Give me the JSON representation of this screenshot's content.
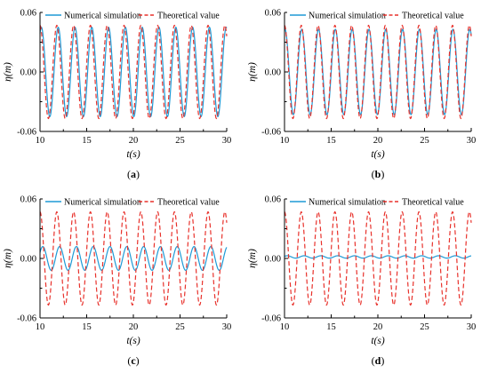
{
  "chart_data": [
    {
      "id": "a",
      "type": "line",
      "caption_letter": "a",
      "xlabel": "t(s)",
      "ylabel": "η(m)",
      "xlim": [
        10,
        30
      ],
      "ylim": [
        -0.06,
        0.06
      ],
      "xticks": [
        "10",
        "15",
        "20",
        "25",
        "30"
      ],
      "yticks": [
        "0.06",
        "0.00",
        "-0.06"
      ],
      "legend_position": "top",
      "series": [
        {
          "name": "Numerical simulation",
          "style": "solid",
          "color": "#1f9ad6",
          "amplitude": 0.045,
          "period": 1.8,
          "phase_shift": 0.15,
          "offset": 0.0
        },
        {
          "name": "Theoretical value",
          "style": "dashed",
          "color": "#e8312b",
          "amplitude": 0.047,
          "period": 1.8,
          "phase_shift": 0.0,
          "offset": 0.0
        }
      ]
    },
    {
      "id": "b",
      "type": "line",
      "caption_letter": "b",
      "xlabel": "t(s)",
      "ylabel": "η(m)",
      "xlim": [
        10,
        30
      ],
      "ylim": [
        -0.06,
        0.06
      ],
      "xticks": [
        "10",
        "15",
        "20",
        "25",
        "30"
      ],
      "yticks": [
        "0.06",
        "0.00",
        "-0.06"
      ],
      "legend_position": "top",
      "series": [
        {
          "name": "Numerical simulation",
          "style": "solid",
          "color": "#1f9ad6",
          "amplitude": 0.043,
          "period": 1.8,
          "phase_shift": 0.05,
          "offset": 0.0
        },
        {
          "name": "Theoretical value",
          "style": "dashed",
          "color": "#e8312b",
          "amplitude": 0.047,
          "period": 1.8,
          "phase_shift": 0.0,
          "offset": 0.0
        }
      ]
    },
    {
      "id": "c",
      "type": "line",
      "caption_letter": "c",
      "xlabel": "t(s)",
      "ylabel": "η(m)",
      "xlim": [
        10,
        30
      ],
      "ylim": [
        -0.06,
        0.06
      ],
      "xticks": [
        "10",
        "15",
        "20",
        "25",
        "30"
      ],
      "yticks": [
        "0.06",
        "0.00",
        "-0.06"
      ],
      "legend_position": "top",
      "series": [
        {
          "name": "Numerical simulation",
          "style": "solid",
          "color": "#1f9ad6",
          "amplitude": 0.012,
          "period": 1.8,
          "phase_shift": 0.3,
          "offset": 0.0
        },
        {
          "name": "Theoretical value",
          "style": "dashed",
          "color": "#e8312b",
          "amplitude": 0.047,
          "period": 1.8,
          "phase_shift": 0.0,
          "offset": 0.0
        }
      ]
    },
    {
      "id": "d",
      "type": "line",
      "caption_letter": "d",
      "xlabel": "t(s)",
      "ylabel": "η(m)",
      "xlim": [
        10,
        30
      ],
      "ylim": [
        -0.06,
        0.06
      ],
      "xticks": [
        "10",
        "15",
        "20",
        "25",
        "30"
      ],
      "yticks": [
        "0.06",
        "0.00",
        "-0.06"
      ],
      "legend_position": "top",
      "series": [
        {
          "name": "Numerical simulation",
          "style": "solid",
          "color": "#1f9ad6",
          "amplitude": 0.0012,
          "period": 1.8,
          "phase_shift": 0.3,
          "offset": 0.0015
        },
        {
          "name": "Theoretical value",
          "style": "dashed",
          "color": "#e8312b",
          "amplitude": 0.047,
          "period": 1.8,
          "phase_shift": 0.0,
          "offset": 0.0
        }
      ]
    }
  ]
}
